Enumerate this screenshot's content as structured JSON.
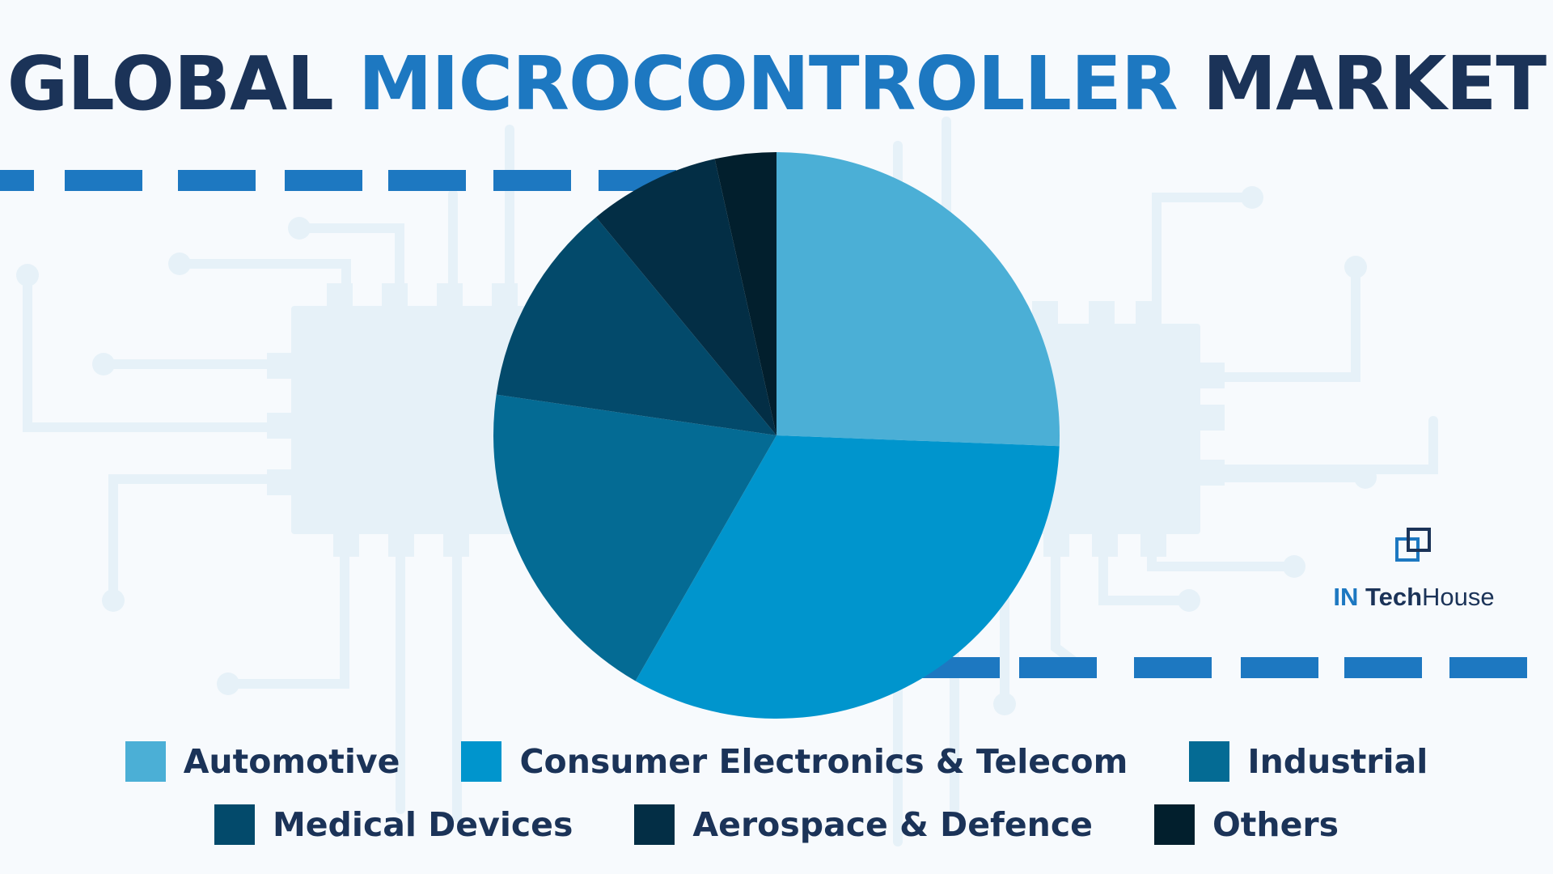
{
  "title": {
    "part1": "GLOBAL",
    "part2": "MICROCONTROLLER",
    "part3": "MARKET"
  },
  "logo": {
    "part1": "IN",
    "part2": "Tech",
    "part3": "House",
    "icon": "logo-squares-icon"
  },
  "colors": {
    "title_dark": "#1b3358",
    "title_accent": "#1d78c1",
    "dashes": "#1d78c1",
    "circuit": "#e6f1f8"
  },
  "chart_data": {
    "type": "pie",
    "title": "GLOBAL MICROCONTROLLER MARKET",
    "start": "12 o'clock, clockwise",
    "legend_position": "bottom",
    "data_labels": "none",
    "slices": [
      {
        "label": "Automotive",
        "value": 25.6,
        "color": "#4bafd6"
      },
      {
        "label": "Consumer Electronics & Telecom",
        "value": 32.7,
        "color": "#0095cd"
      },
      {
        "label": "Industrial",
        "value": 19.0,
        "color": "#046b94"
      },
      {
        "label": "Medical Devices",
        "value": 11.7,
        "color": "#034a6b"
      },
      {
        "label": "Aerospace & Defence",
        "value": 7.5,
        "color": "#032e45"
      },
      {
        "label": "Others",
        "value": 3.5,
        "color": "#021f2d"
      }
    ]
  }
}
